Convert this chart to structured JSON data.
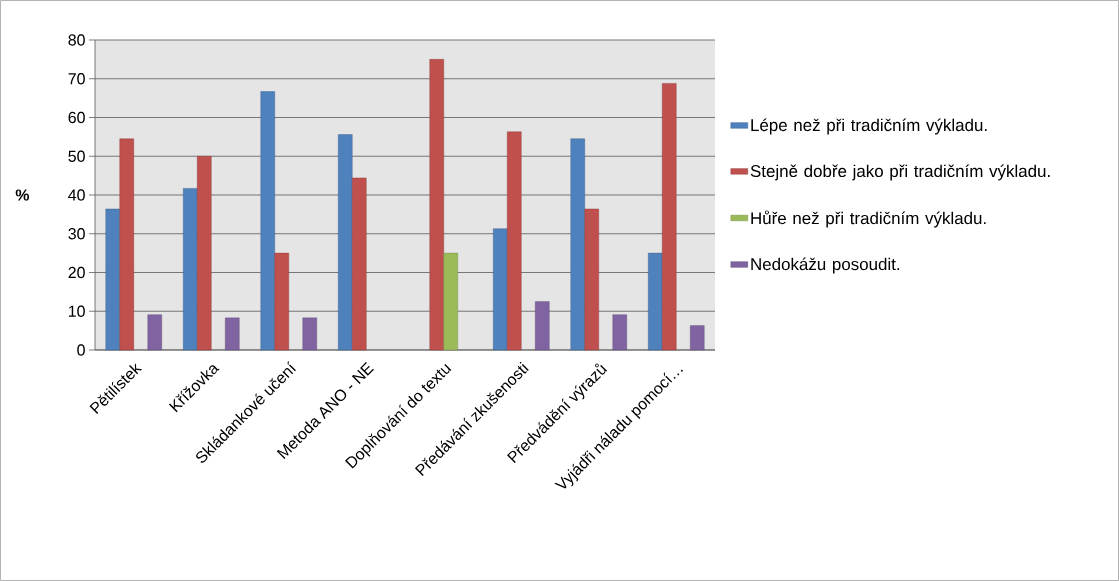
{
  "chart_data": {
    "type": "bar",
    "ylabel": "%",
    "categories": [
      "Pětilístek",
      "Křížovka",
      "Skládankové učení",
      "Metoda ANO - NE",
      "Doplňování do textu",
      "Předávání zkušenosti",
      "Předvádění výrazů",
      "Vyjádři náladu pomocí…"
    ],
    "series": [
      {
        "name": "Lépe než při tradičním výkladu.",
        "color": "#4f81bd",
        "values": [
          36.4,
          41.7,
          66.7,
          55.6,
          null,
          31.3,
          54.5,
          25
        ]
      },
      {
        "name": "Stejně dobře jako při tradičním výkladu.",
        "color": "#c0504d",
        "values": [
          54.5,
          50,
          25,
          44.4,
          75,
          56.3,
          36.4,
          68.8
        ]
      },
      {
        "name": "Hůře než při tradičním výkladu.",
        "color": "#9bbb59",
        "values": [
          null,
          null,
          null,
          null,
          25,
          null,
          null,
          null
        ]
      },
      {
        "name": "Nedokážu posoudit.",
        "color": "#8064a2",
        "values": [
          9.1,
          8.3,
          8.3,
          null,
          null,
          12.5,
          9.1,
          6.3
        ]
      }
    ],
    "ylim": [
      0,
      80
    ],
    "yticks": [
      0,
      10,
      20,
      30,
      40,
      50,
      60,
      70,
      80
    ],
    "grid": "y",
    "legend": "right"
  }
}
